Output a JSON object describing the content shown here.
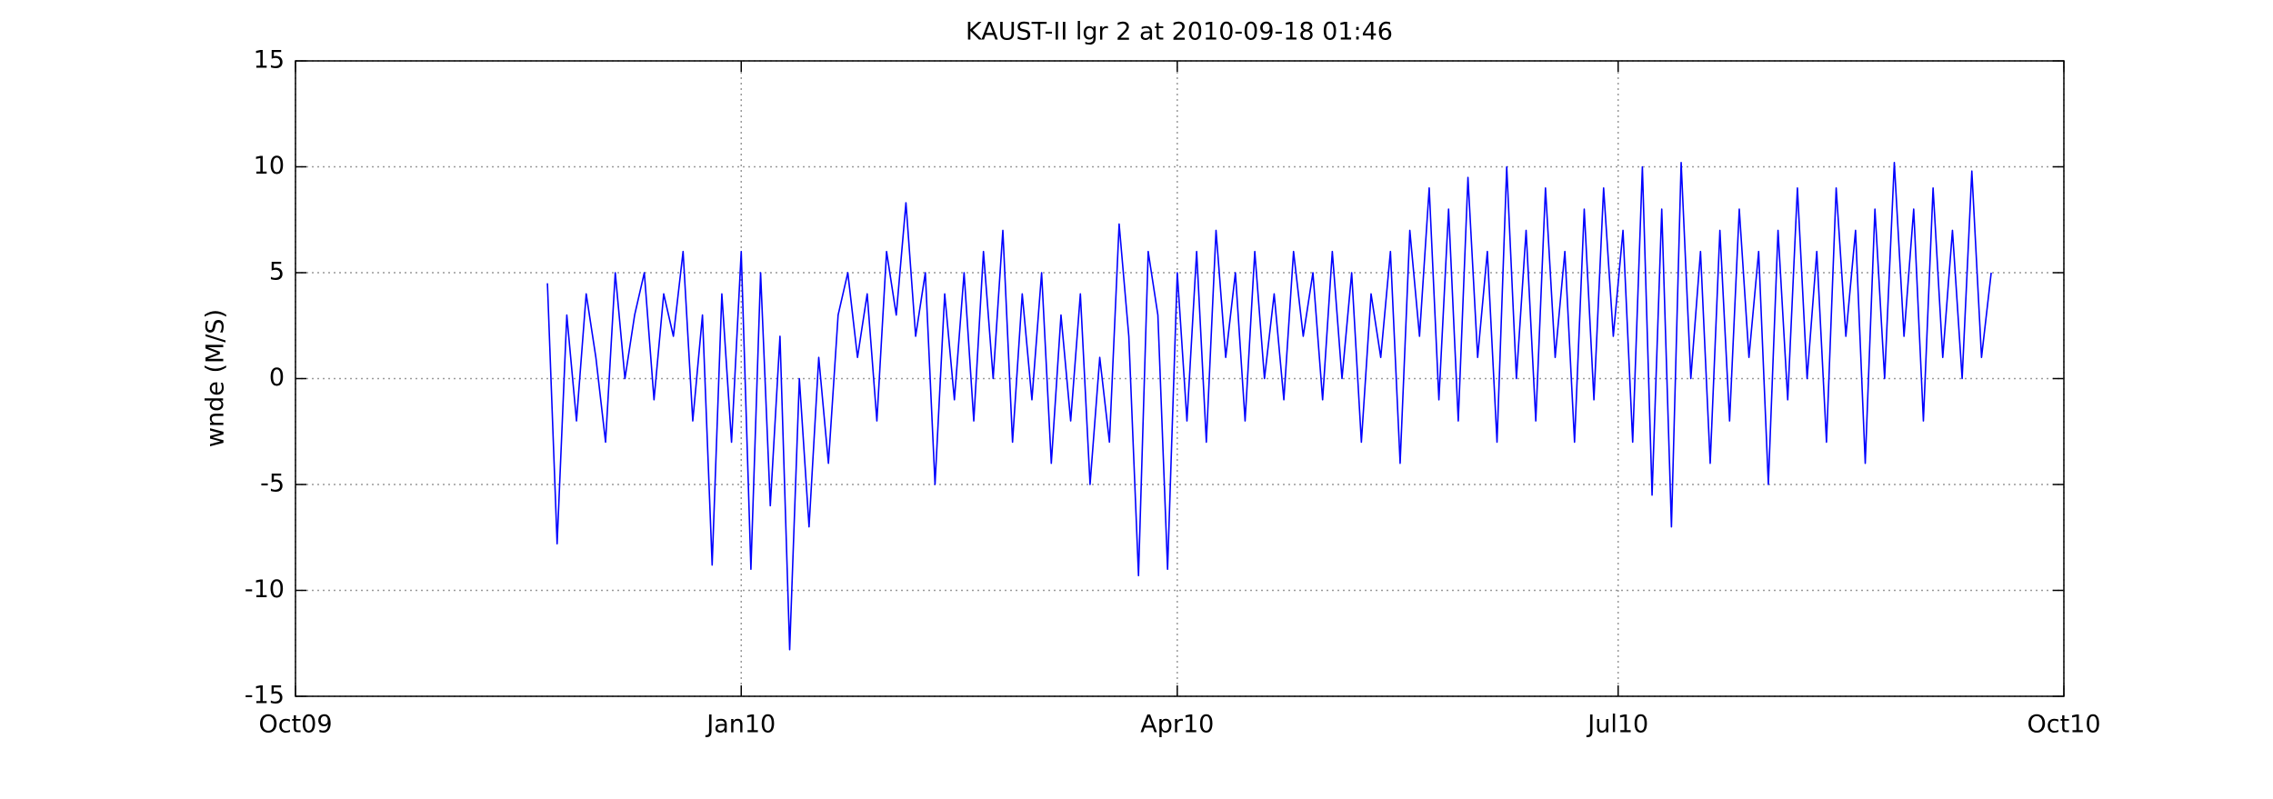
{
  "chart_data": {
    "type": "line",
    "title": "KAUST-II lgr 2 at 2010-09-18 01:46",
    "ylabel": "wnde (M/S)",
    "color": "#0000ff",
    "grid": true,
    "xlim": [
      734047,
      734412
    ],
    "xticks": [
      {
        "value": 734047,
        "label": "Oct09"
      },
      {
        "value": 734139,
        "label": "Jan10"
      },
      {
        "value": 734229,
        "label": "Apr10"
      },
      {
        "value": 734320,
        "label": "Jul10"
      },
      {
        "value": 734412,
        "label": "Oct10"
      }
    ],
    "ylim": [
      -15,
      15
    ],
    "yticks": [
      -15,
      -10,
      -5,
      0,
      5,
      10,
      15
    ],
    "x": [
      734099,
      734101,
      734103,
      734105,
      734107,
      734109,
      734111,
      734113,
      734115,
      734117,
      734119,
      734121,
      734123,
      734125,
      734127,
      734129,
      734131,
      734133,
      734135,
      734137,
      734139,
      734141,
      734143,
      734145,
      734147,
      734149,
      734151,
      734153,
      734155,
      734157,
      734159,
      734161,
      734163,
      734165,
      734167,
      734169,
      734171,
      734173,
      734175,
      734177,
      734179,
      734181,
      734183,
      734185,
      734187,
      734189,
      734191,
      734193,
      734195,
      734197,
      734199,
      734201,
      734203,
      734205,
      734207,
      734209,
      734211,
      734213,
      734215,
      734217,
      734219,
      734221,
      734223,
      734225,
      734227,
      734229,
      734231,
      734233,
      734235,
      734237,
      734239,
      734241,
      734243,
      734245,
      734247,
      734249,
      734251,
      734253,
      734255,
      734257,
      734259,
      734261,
      734263,
      734265,
      734267,
      734269,
      734271,
      734273,
      734275,
      734277,
      734279,
      734281,
      734283,
      734285,
      734287,
      734289,
      734291,
      734293,
      734295,
      734297,
      734299,
      734301,
      734303,
      734305,
      734307,
      734309,
      734311,
      734313,
      734315,
      734317,
      734319,
      734321,
      734323,
      734325,
      734327,
      734329,
      734331,
      734333,
      734335,
      734337,
      734339,
      734341,
      734343,
      734345,
      734347,
      734349,
      734351,
      734353,
      734355,
      734357,
      734359,
      734361,
      734363,
      734365,
      734367,
      734369,
      734371,
      734373,
      734375,
      734377,
      734379,
      734381,
      734383,
      734385,
      734387,
      734389,
      734391,
      734393,
      734395,
      734397
    ],
    "values": [
      4.5,
      -7.8,
      3,
      -2,
      4,
      1,
      -3,
      5,
      0,
      3,
      5,
      -1,
      4,
      2,
      6,
      -2,
      3,
      -8.8,
      4,
      -3,
      6,
      -9,
      5,
      -6,
      2,
      -12.8,
      0,
      -7,
      1,
      -4,
      3,
      5,
      1,
      4,
      -2,
      6,
      3,
      8.3,
      2,
      5,
      -5,
      4,
      -1,
      5,
      -2,
      6,
      0,
      7,
      -3,
      4,
      -1,
      5,
      -4,
      3,
      -2,
      4,
      -5,
      1,
      -3,
      7.3,
      2,
      -9.3,
      6,
      3,
      -9,
      5,
      -2,
      6,
      -3,
      7,
      1,
      5,
      -2,
      6,
      0,
      4,
      -1,
      6,
      2,
      5,
      -1,
      6,
      0,
      5,
      -3,
      4,
      1,
      6,
      -4,
      7,
      2,
      9,
      -1,
      8,
      -2,
      9.5,
      1,
      6,
      -3,
      10,
      0,
      7,
      -2,
      9,
      1,
      6,
      -3,
      8,
      -1,
      9,
      2,
      7,
      -3,
      10,
      -5.5,
      8,
      -7,
      10.2,
      0,
      6,
      -4,
      7,
      -2,
      8,
      1,
      6,
      -5,
      7,
      -1,
      9,
      0,
      6,
      -3,
      9,
      2,
      7,
      -4,
      8,
      0,
      10.2,
      2,
      8,
      -2,
      9,
      1,
      7,
      0,
      9.8,
      1,
      5
    ]
  }
}
